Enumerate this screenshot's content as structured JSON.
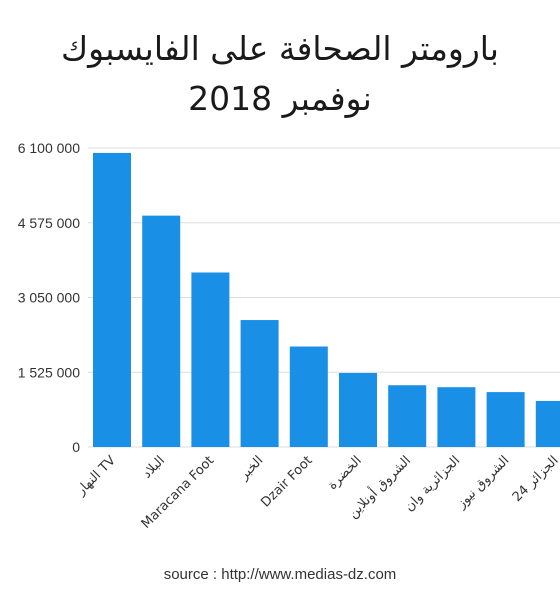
{
  "chart_data": {
    "type": "bar",
    "title_line1": "بارومتر الصحافة على الفايسبوك",
    "title_line2": "نوفمبر 2018",
    "xlabel": "",
    "ylabel": "",
    "categories": [
      "النهار TV",
      "البلاد",
      "Maracana Foot",
      "الخبر",
      "Dzair Foot",
      "الخضرة",
      "الشروق أونلاين",
      "الجزائرية وان",
      "الشروق نيوز",
      "الجزائر 24"
    ],
    "values": [
      6000000,
      4720000,
      3560000,
      2590000,
      2050000,
      1510000,
      1260000,
      1220000,
      1120000,
      940000
    ],
    "yticks": [
      0,
      1525000,
      3050000,
      4575000,
      6100000
    ],
    "ytick_labels": [
      "0",
      "1 525 000",
      "3 050 000",
      "4 575 000",
      "6 100 000"
    ],
    "ylim": [
      0,
      6100000
    ],
    "grid": true,
    "bar_color": "#1a8fe6",
    "grid_color": "#dddddd"
  },
  "source_text": "source : http://www.medias-dz.com"
}
